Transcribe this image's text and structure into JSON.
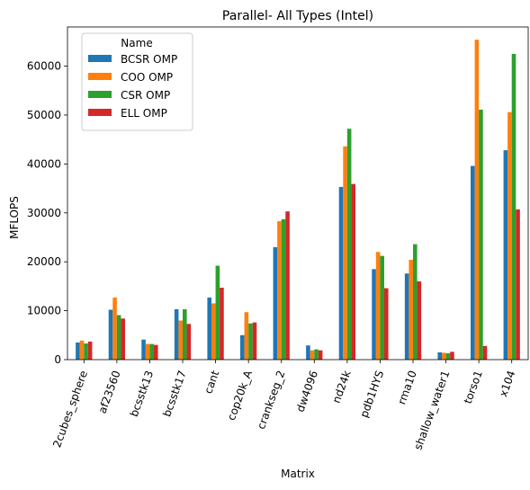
{
  "chart_data": {
    "type": "bar",
    "title": "Parallel- All Types (Intel)",
    "xlabel": "Matrix",
    "ylabel": "MFLOPS",
    "ylim": [
      0,
      68000
    ],
    "yticks": [
      0,
      10000,
      20000,
      30000,
      40000,
      50000,
      60000
    ],
    "grid": false,
    "legend": {
      "title": "Name",
      "placement": "top-left"
    },
    "categories": [
      "2cubes_sphere",
      "af23560",
      "bcsstk13",
      "bcsstk17",
      "cant",
      "cop20k_A",
      "crankseg_2",
      "dw4096",
      "nd24k",
      "pdb1HYS",
      "rma10",
      "shallow_water1",
      "torso1",
      "x104"
    ],
    "series": [
      {
        "name": "BCSR OMP",
        "color": "#1f77b4",
        "values": [
          3500,
          10200,
          4100,
          10300,
          12700,
          5000,
          23000,
          2900,
          35300,
          18500,
          17600,
          1500,
          39600,
          42800
        ]
      },
      {
        "name": "COO OMP",
        "color": "#ff7f0e",
        "values": [
          3900,
          12700,
          3200,
          8000,
          11500,
          9700,
          28300,
          1900,
          43600,
          22000,
          20400,
          1400,
          65400,
          50600
        ]
      },
      {
        "name": "CSR OMP",
        "color": "#2ca02c",
        "values": [
          3300,
          9100,
          3200,
          10300,
          19200,
          7400,
          28700,
          2100,
          47200,
          21200,
          23600,
          1300,
          51100,
          62500
        ]
      },
      {
        "name": "ELL OMP",
        "color": "#d62728",
        "values": [
          3700,
          8400,
          3000,
          7300,
          14700,
          7600,
          30300,
          1900,
          35900,
          14600,
          16000,
          1600,
          2800,
          30700
        ]
      }
    ]
  }
}
